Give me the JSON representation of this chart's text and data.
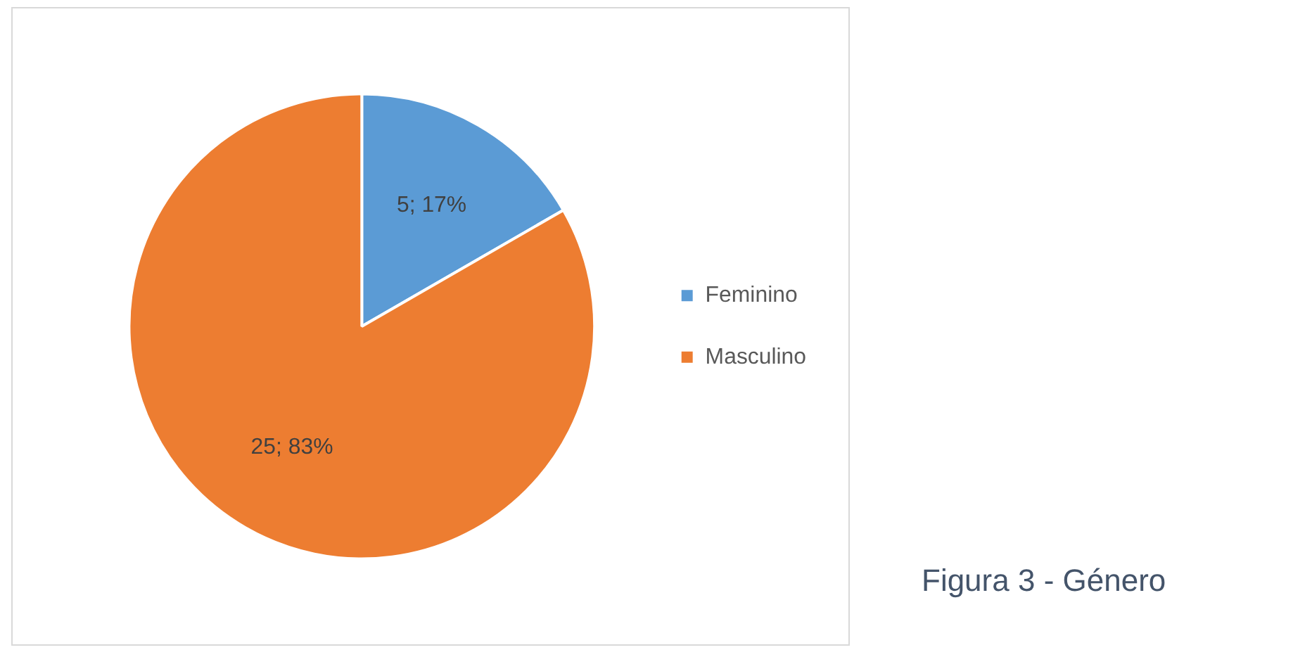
{
  "chart_data": {
    "type": "pie",
    "categories": [
      "Feminino",
      "Masculino"
    ],
    "values": [
      5,
      25
    ],
    "colors": [
      "#5b9bd5",
      "#ed7d31"
    ],
    "value_labels": [
      "5; 17%",
      "25; 83%"
    ],
    "legend": "right",
    "annotations": [
      "Figura 3 - Género"
    ]
  }
}
